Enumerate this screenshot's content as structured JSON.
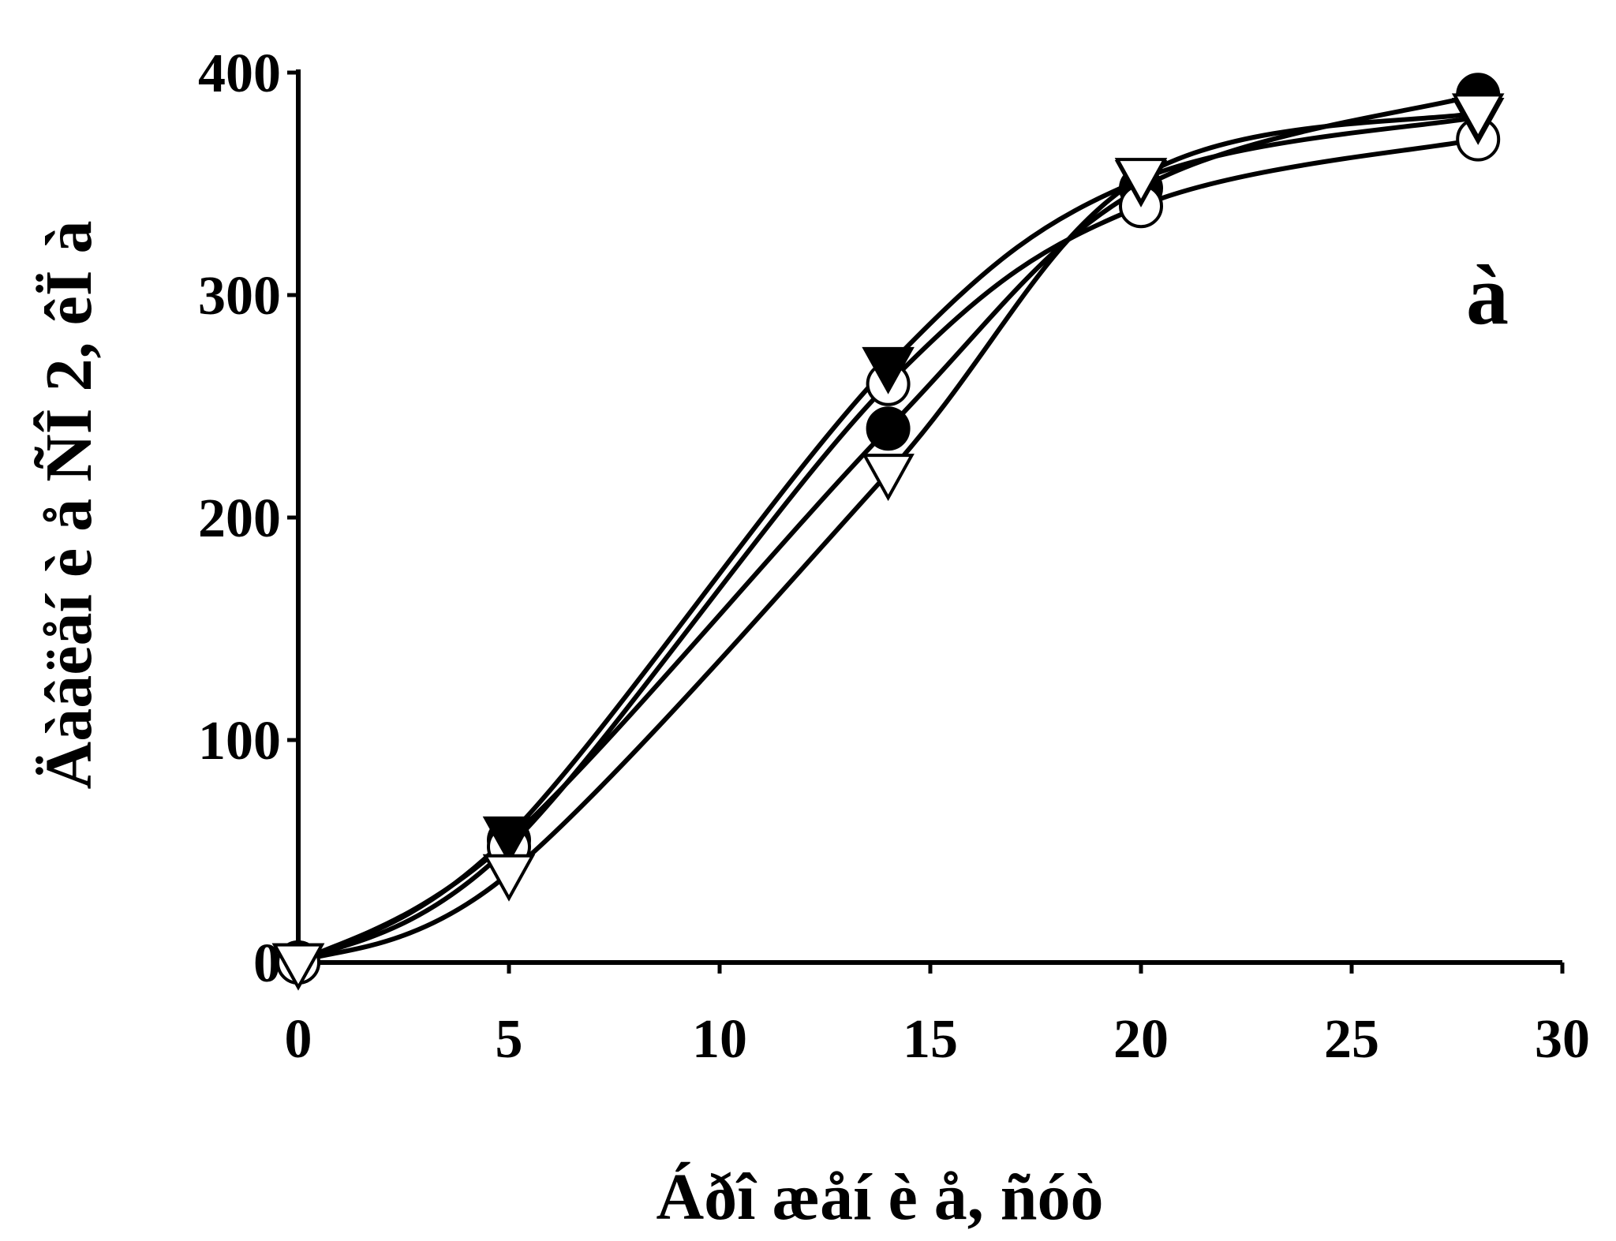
{
  "chart_data": {
    "type": "line",
    "title": "",
    "xlabel": "Áðî æåí è å, ñóò",
    "ylabel": "Äàâëåí è å ÑÎ 2, êÏ à",
    "panel_label": "à",
    "xlim": [
      0,
      30
    ],
    "ylim": [
      0,
      400
    ],
    "xticks": [
      0,
      5,
      10,
      15,
      20,
      25,
      30
    ],
    "yticks": [
      0,
      100,
      200,
      300,
      400
    ],
    "grid": false,
    "legend": "none",
    "series": [
      {
        "marker": "filled-circle",
        "x": [
          0,
          5,
          14,
          20,
          28
        ],
        "y": [
          0,
          55,
          240,
          348,
          390
        ]
      },
      {
        "marker": "open-circle",
        "x": [
          0,
          5,
          14,
          20,
          28
        ],
        "y": [
          0,
          52,
          260,
          340,
          370
        ]
      },
      {
        "marker": "filled-triangle-down",
        "x": [
          0,
          5,
          14,
          20,
          28
        ],
        "y": [
          0,
          57,
          268,
          352,
          380
        ]
      },
      {
        "marker": "open-triangle-down",
        "x": [
          0,
          5,
          14,
          20,
          28
        ],
        "y": [
          0,
          40,
          220,
          353,
          382
        ]
      }
    ]
  }
}
